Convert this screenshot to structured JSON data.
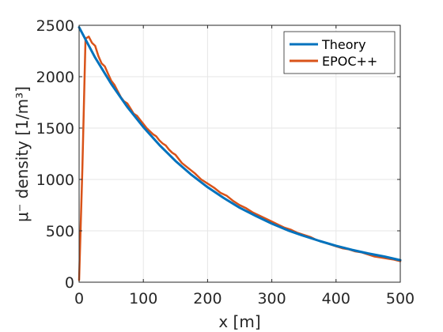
{
  "chart_data": {
    "type": "line",
    "xlabel": "x [m]",
    "ylabel": "μ⁻ density [1/m³]",
    "xlim": [
      0,
      500
    ],
    "ylim": [
      0,
      2500
    ],
    "xticks": [
      "0",
      "100",
      "200",
      "300",
      "400",
      "500"
    ],
    "yticks": [
      "0",
      "500",
      "1000",
      "1500",
      "2000",
      "2500"
    ],
    "grid": true,
    "legend_position": "top-right",
    "series": [
      {
        "name": "Theory",
        "color": "#0072BD",
        "x": [
          0,
          25,
          50,
          75,
          100,
          125,
          150,
          175,
          200,
          225,
          250,
          275,
          300,
          325,
          350,
          375,
          400,
          425,
          450,
          475,
          500
        ],
        "y": [
          2480,
          2185,
          1930,
          1705,
          1510,
          1335,
          1180,
          1045,
          925,
          820,
          725,
          645,
          570,
          505,
          450,
          400,
          355,
          315,
          280,
          250,
          215
        ]
      },
      {
        "name": "EPOC++",
        "color": "#D95319",
        "x": [
          0,
          5,
          10,
          15,
          20,
          25,
          30,
          35,
          40,
          45,
          50,
          55,
          60,
          65,
          70,
          75,
          80,
          85,
          90,
          95,
          100,
          105,
          110,
          115,
          120,
          125,
          130,
          135,
          140,
          145,
          150,
          160,
          170,
          180,
          190,
          200,
          210,
          220,
          230,
          240,
          250,
          260,
          270,
          280,
          290,
          300,
          310,
          320,
          330,
          340,
          350,
          360,
          370,
          380,
          390,
          400,
          410,
          420,
          430,
          440,
          450,
          460,
          470,
          480,
          490,
          500
        ],
        "y": [
          20,
          1100,
          2370,
          2390,
          2330,
          2300,
          2200,
          2130,
          2100,
          2030,
          1960,
          1920,
          1860,
          1800,
          1760,
          1740,
          1690,
          1640,
          1620,
          1580,
          1540,
          1500,
          1470,
          1440,
          1420,
          1380,
          1350,
          1330,
          1290,
          1260,
          1240,
          1160,
          1110,
          1060,
          1000,
          960,
          920,
          870,
          840,
          790,
          750,
          720,
          680,
          650,
          620,
          590,
          560,
          530,
          510,
          480,
          460,
          440,
          410,
          390,
          370,
          350,
          330,
          320,
          300,
          290,
          270,
          250,
          240,
          230,
          220,
          205
        ]
      }
    ]
  }
}
